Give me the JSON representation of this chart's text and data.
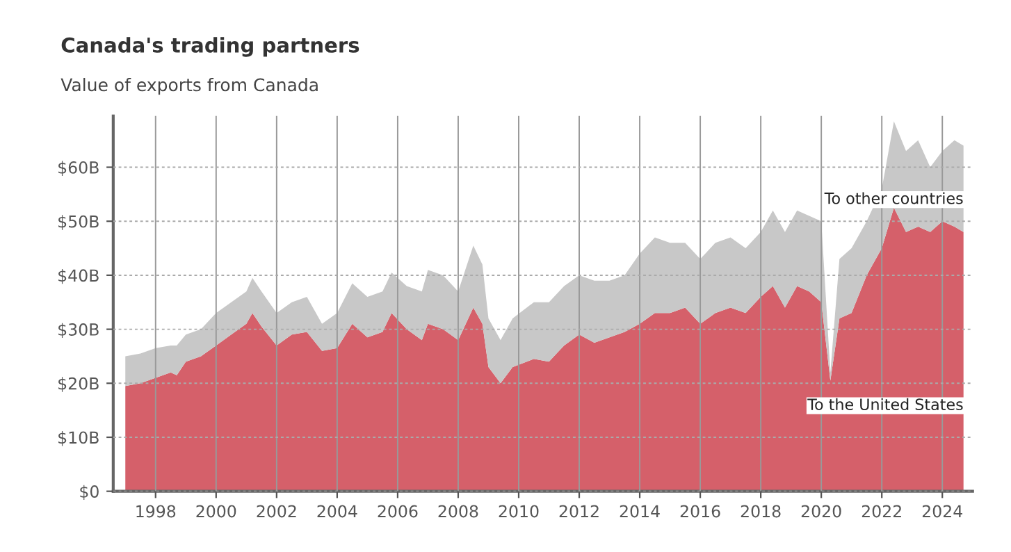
{
  "chart_data": {
    "type": "area",
    "stacked": true,
    "title": "Canada's trading partners",
    "subtitle": "Value of exports from Canada",
    "x": [
      1997.0,
      1997.5,
      1998.0,
      1998.5,
      1998.7,
      1999.0,
      1999.5,
      2000.0,
      2000.5,
      2001.0,
      2001.2,
      2001.5,
      2002.0,
      2002.5,
      2003.0,
      2003.5,
      2004.0,
      2004.5,
      2005.0,
      2005.5,
      2005.8,
      2006.3,
      2006.8,
      2007.0,
      2007.5,
      2008.0,
      2008.5,
      2008.8,
      2009.0,
      2009.4,
      2009.8,
      2010.5,
      2011.0,
      2011.5,
      2012.0,
      2012.5,
      2013.0,
      2013.5,
      2014.0,
      2014.5,
      2015.0,
      2015.5,
      2016.0,
      2016.5,
      2017.0,
      2017.5,
      2018.0,
      2018.4,
      2018.8,
      2019.2,
      2019.6,
      2020.0,
      2020.3,
      2020.6,
      2021.0,
      2021.5,
      2022.0,
      2022.4,
      2022.8,
      2023.2,
      2023.6,
      2024.0,
      2024.4,
      2024.7
    ],
    "series": [
      {
        "name": "To the United States",
        "color": "#d5606a",
        "values": [
          19.5,
          20,
          21,
          22,
          21.5,
          24,
          25,
          27,
          29,
          31,
          33,
          30.5,
          27,
          29,
          29.5,
          26,
          26.5,
          31,
          28.5,
          29.5,
          33,
          30,
          28,
          31,
          30,
          28,
          34,
          31,
          23,
          20,
          23,
          24.5,
          24,
          27,
          29,
          27.5,
          28.5,
          29.5,
          31,
          33,
          33,
          34,
          31,
          33,
          34,
          33,
          36,
          38,
          34,
          38,
          37,
          35,
          20.5,
          32,
          33,
          40,
          45,
          52.5,
          48,
          49,
          48,
          50,
          49,
          48
        ]
      },
      {
        "name": "To other countries",
        "color": "#c8c8c8",
        "values": [
          5.5,
          5.5,
          5.5,
          5,
          5.5,
          5,
          5,
          6,
          6,
          6,
          6.5,
          6.5,
          6,
          6,
          6.5,
          5,
          6.5,
          7.5,
          7.5,
          7.5,
          7.5,
          8,
          9,
          10,
          10,
          9,
          11.5,
          11,
          9,
          8,
          9,
          10.5,
          11,
          11,
          11,
          11.5,
          10.5,
          10.5,
          13,
          14,
          13,
          12,
          12,
          13,
          13,
          12,
          12,
          14,
          14,
          14,
          14,
          15,
          1.5,
          11,
          12,
          10,
          11,
          16,
          15,
          16,
          12,
          13,
          16,
          16
        ]
      }
    ],
    "xlim": [
      1996.6,
      2025.0
    ],
    "xticks": [
      1998,
      2000,
      2002,
      2004,
      2006,
      2008,
      2010,
      2012,
      2014,
      2016,
      2018,
      2020,
      2022,
      2024
    ],
    "ylim": [
      0,
      69.5
    ],
    "yticks": [
      {
        "value": 0,
        "label": "$0"
      },
      {
        "value": 10,
        "label": "$10B"
      },
      {
        "value": 20,
        "label": "$20B"
      },
      {
        "value": 30,
        "label": "$30B"
      },
      {
        "value": 40,
        "label": "$40B"
      },
      {
        "value": 50,
        "label": "$50B"
      },
      {
        "value": 60,
        "label": "$60B"
      }
    ],
    "grid": true
  }
}
